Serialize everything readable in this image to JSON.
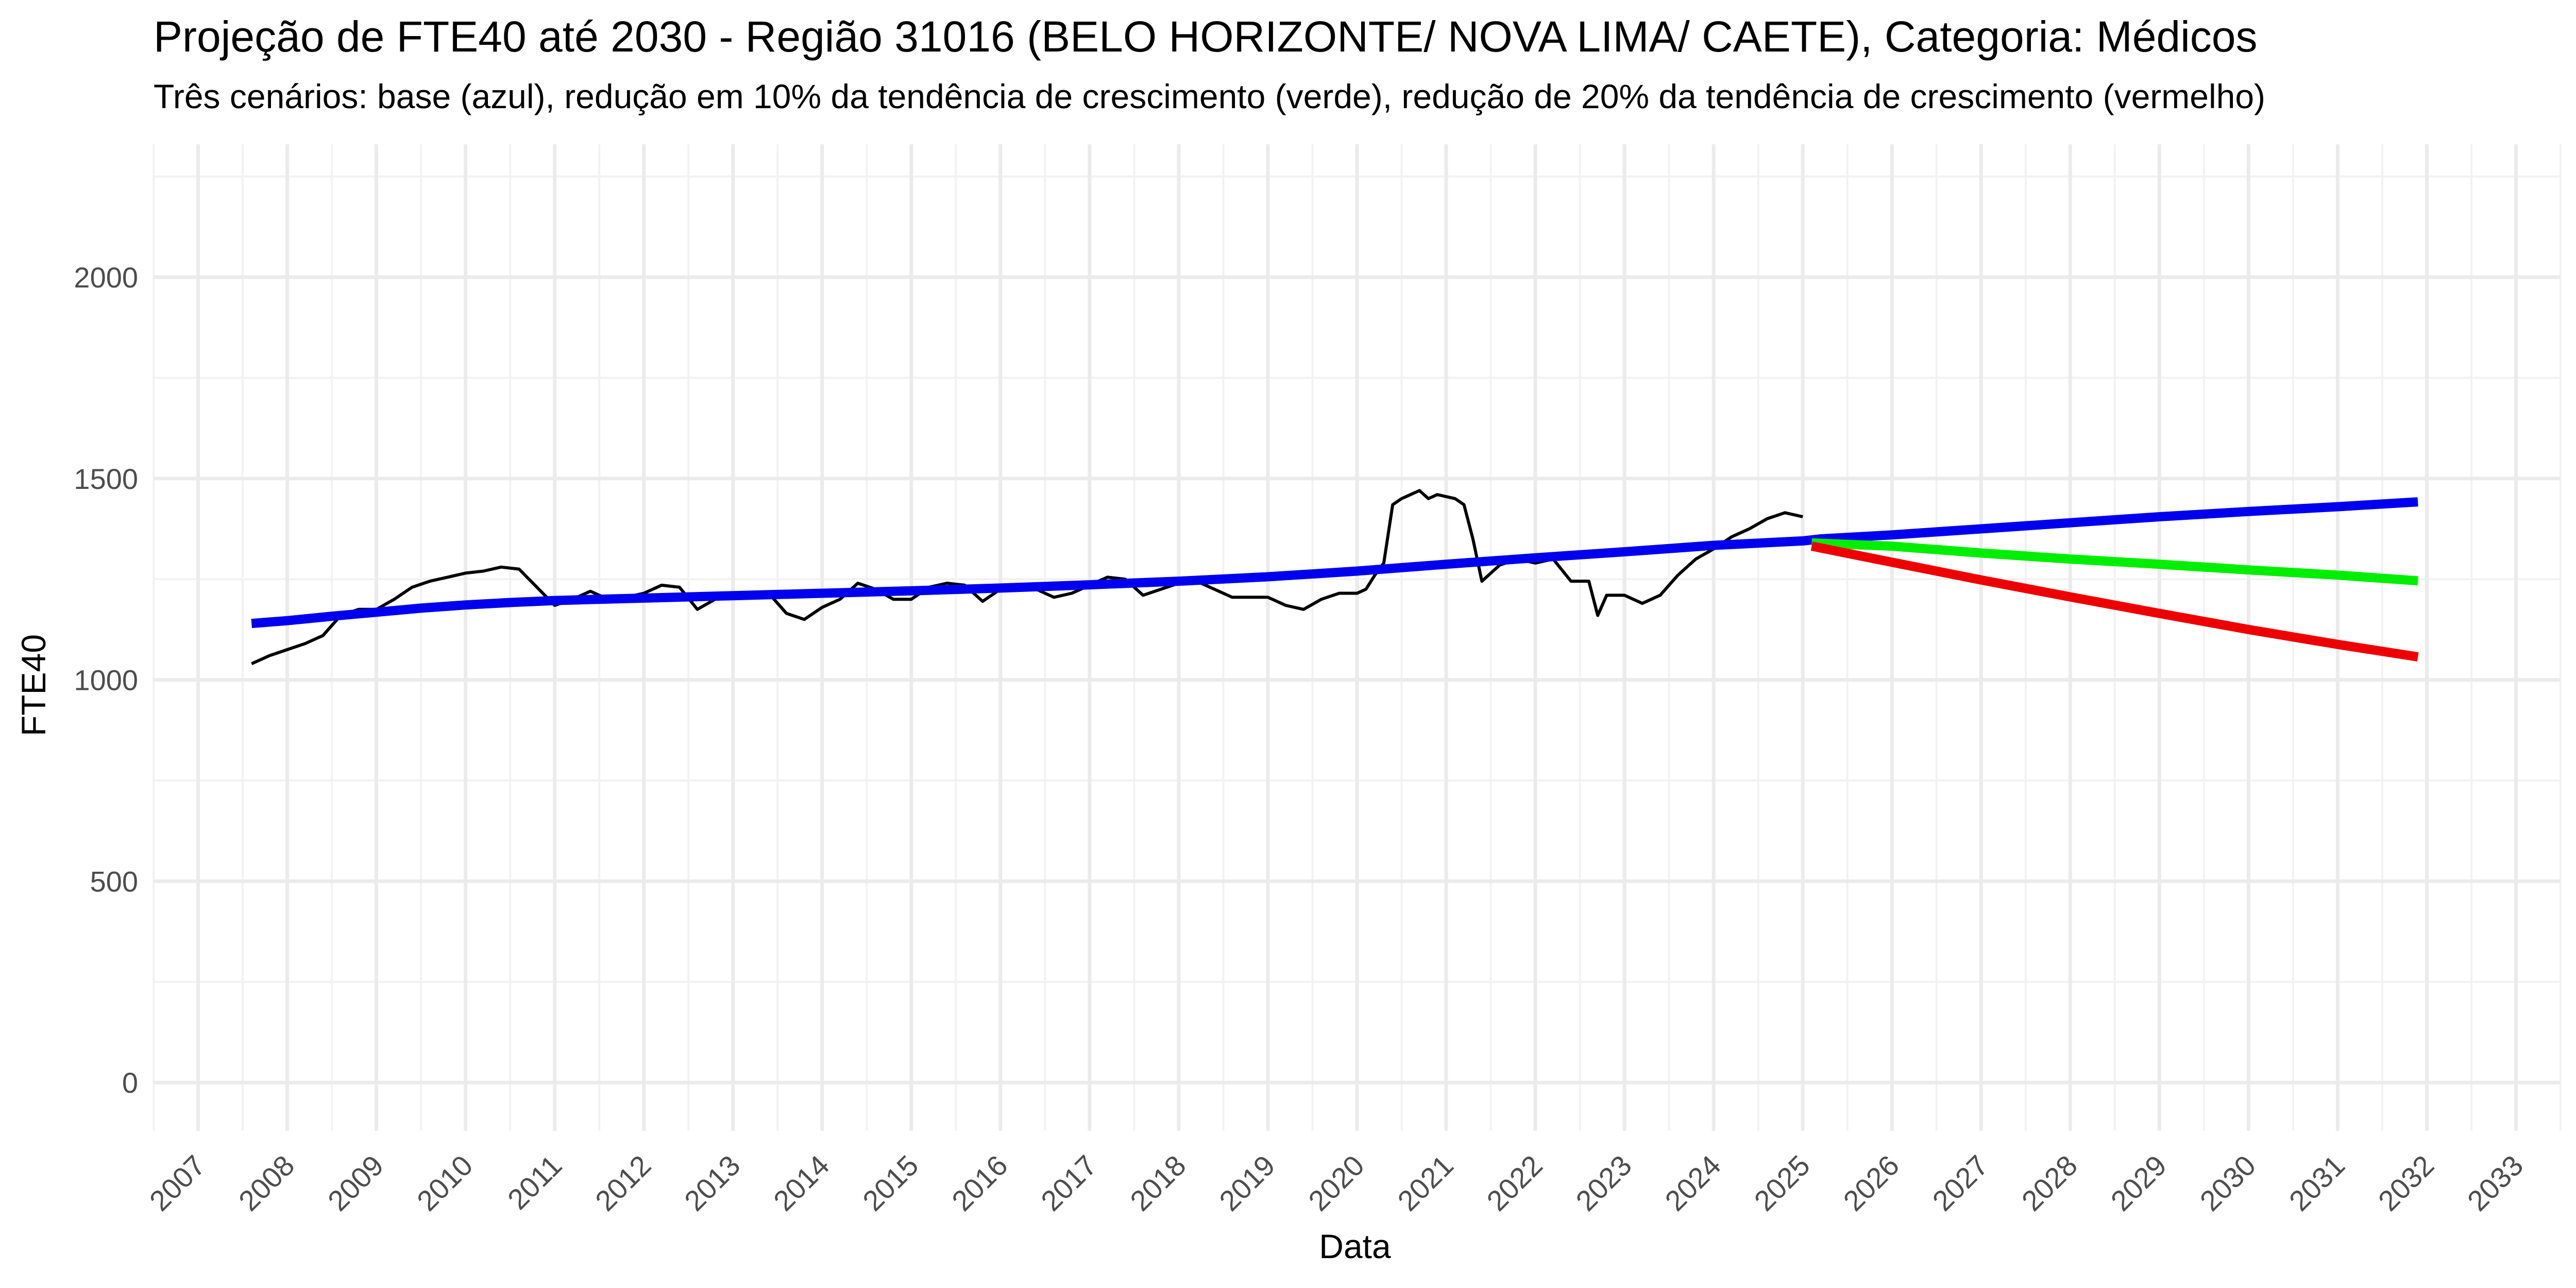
{
  "chart_data": {
    "type": "line",
    "title": "Projeção de FTE40 até 2030 - Região 31016 (BELO HORIZONTE/ NOVA LIMA/ CAETE), Categoria: Médicos",
    "subtitle": "Três cenários: base (azul), redução em 10% da tendência de crescimento (verde), redução de 20% da tendência de crescimento (vermelho)",
    "xlabel": "Data",
    "ylabel": "FTE40",
    "xlim": [
      2006.5,
      2033.5
    ],
    "ylim": [
      -120,
      2330
    ],
    "x_ticks": [
      "2007",
      "2008",
      "2009",
      "2010",
      "2011",
      "2012",
      "2013",
      "2014",
      "2015",
      "2016",
      "2017",
      "2018",
      "2019",
      "2020",
      "2021",
      "2022",
      "2023",
      "2024",
      "2025",
      "2026",
      "2027",
      "2028",
      "2029",
      "2030",
      "2031",
      "2032",
      "2033"
    ],
    "y_ticks": [
      0,
      500,
      1000,
      1500,
      2000
    ],
    "grid": true,
    "series": [
      {
        "color": "#000000",
        "x": [
          2007.6,
          2007.8,
          2008.0,
          2008.2,
          2008.4,
          2008.6,
          2008.8,
          2009.0,
          2009.2,
          2009.4,
          2009.6,
          2009.8,
          2010.0,
          2010.2,
          2010.4,
          2010.6,
          2010.8,
          2011.0,
          2011.2,
          2011.4,
          2011.6,
          2011.8,
          2012.0,
          2012.2,
          2012.4,
          2012.6,
          2012.8,
          2013.0,
          2013.2,
          2013.4,
          2013.6,
          2013.8,
          2014.0,
          2014.2,
          2014.4,
          2014.6,
          2014.8,
          2015.0,
          2015.2,
          2015.4,
          2015.6,
          2015.8,
          2016.0,
          2016.2,
          2016.4,
          2016.6,
          2016.8,
          2017.0,
          2017.2,
          2017.4,
          2017.6,
          2017.8,
          2018.0,
          2018.2,
          2018.4,
          2018.6,
          2018.8,
          2019.0,
          2019.2,
          2019.4,
          2019.6,
          2019.8,
          2020.0,
          2020.1,
          2020.2,
          2020.3,
          2020.4,
          2020.5,
          2020.6,
          2020.7,
          2020.8,
          2020.9,
          2021.0,
          2021.1,
          2021.2,
          2021.3,
          2021.4,
          2021.6,
          2021.8,
          2022.0,
          2022.2,
          2022.4,
          2022.6,
          2022.7,
          2022.8,
          2023.0,
          2023.2,
          2023.4,
          2023.6,
          2023.8,
          2024.0,
          2024.2,
          2024.4,
          2024.6,
          2024.8,
          2025.0
        ],
        "y": [
          1040,
          1060,
          1075,
          1090,
          1110,
          1160,
          1175,
          1175,
          1200,
          1230,
          1245,
          1255,
          1265,
          1270,
          1280,
          1275,
          1230,
          1185,
          1200,
          1220,
          1200,
          1205,
          1215,
          1235,
          1230,
          1175,
          1200,
          1205,
          1210,
          1215,
          1165,
          1150,
          1180,
          1200,
          1240,
          1225,
          1200,
          1200,
          1230,
          1240,
          1235,
          1195,
          1225,
          1230,
          1225,
          1205,
          1215,
          1235,
          1255,
          1250,
          1210,
          1225,
          1240,
          1245,
          1225,
          1205,
          1205,
          1205,
          1185,
          1175,
          1200,
          1215,
          1215,
          1225,
          1260,
          1290,
          1435,
          1450,
          1460,
          1470,
          1450,
          1460,
          1455,
          1450,
          1435,
          1350,
          1245,
          1285,
          1300,
          1290,
          1300,
          1245,
          1245,
          1160,
          1210,
          1210,
          1190,
          1210,
          1260,
          1300,
          1325,
          1355,
          1375,
          1400,
          1415,
          1405
        ]
      },
      {
        "color": "#0000ee",
        "x": [
          2007.6,
          2008.0,
          2008.5,
          2009.0,
          2009.5,
          2010.0,
          2010.5,
          2011.0,
          2012.0,
          2013.0,
          2014.0,
          2015.0,
          2016.0,
          2017.0,
          2018.0,
          2019.0,
          2020.0,
          2021.0,
          2022.0,
          2023.0,
          2024.0,
          2025.0,
          2025.2,
          2026.0,
          2027.0,
          2028.0,
          2029.0,
          2030.0,
          2031.0,
          2031.9
        ],
        "y": [
          1140,
          1147,
          1158,
          1168,
          1178,
          1186,
          1192,
          1197,
          1203,
          1209,
          1215,
          1221,
          1228,
          1236,
          1245,
          1256,
          1270,
          1287,
          1303,
          1318,
          1334,
          1345,
          1350,
          1360,
          1375,
          1390,
          1405,
          1418,
          1430,
          1442
        ]
      },
      {
        "color": "#00ee00",
        "x": [
          2025.1,
          2026.0,
          2027.0,
          2028.0,
          2029.0,
          2030.0,
          2031.0,
          2031.9
        ],
        "y": [
          1340,
          1332,
          1315,
          1300,
          1287,
          1273,
          1260,
          1246
        ]
      },
      {
        "color": "#ee0000",
        "x": [
          2025.1,
          2026.0,
          2027.0,
          2028.0,
          2029.0,
          2030.0,
          2031.0,
          2031.9
        ],
        "y": [
          1332,
          1292,
          1248,
          1206,
          1165,
          1125,
          1088,
          1057
        ]
      }
    ]
  }
}
